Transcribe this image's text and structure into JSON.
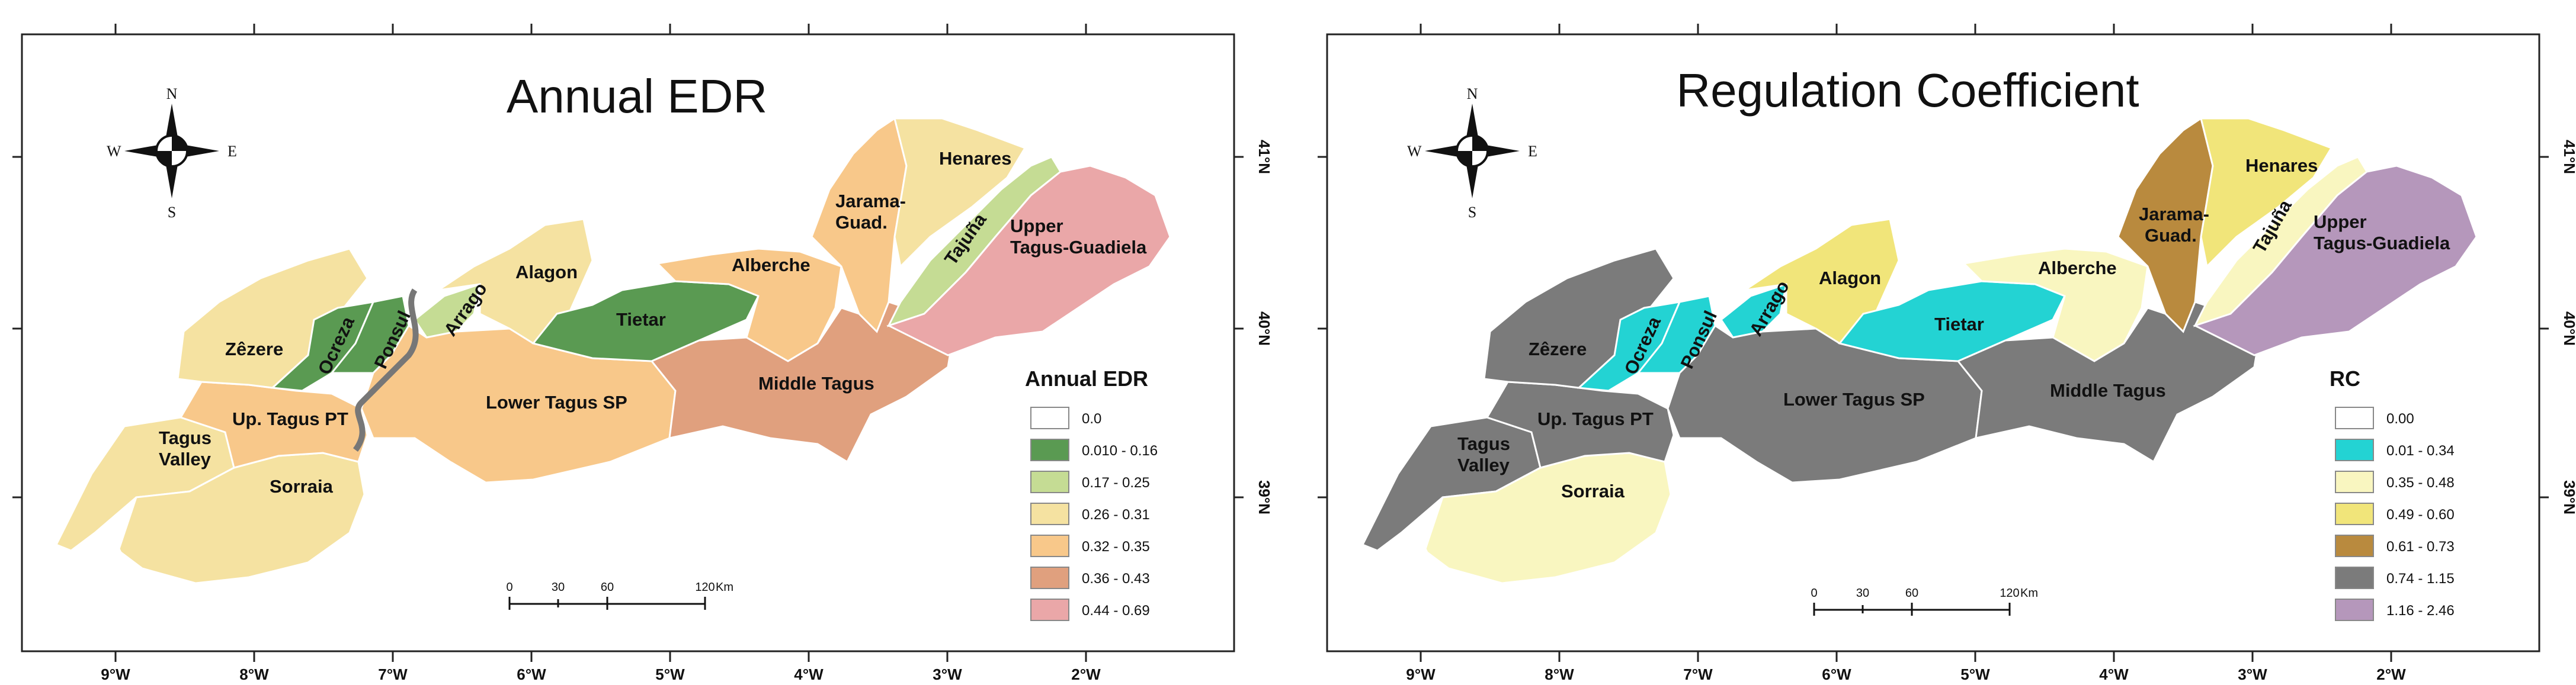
{
  "maps": [
    {
      "title": "Annual EDR",
      "legend_title": "Annual EDR",
      "legend": [
        {
          "label": "0.0",
          "color": "#ffffff"
        },
        {
          "label": "0.010 - 0.16",
          "color": "#5a9a52"
        },
        {
          "label": "0.17 - 0.25",
          "color": "#c5dc94"
        },
        {
          "label": "0.26 - 0.31",
          "color": "#f5e2a1"
        },
        {
          "label": "0.32 - 0.35",
          "color": "#f8c88a"
        },
        {
          "label": "0.36 - 0.43",
          "color": "#e0a07e"
        },
        {
          "label": "0.44 - 0.69",
          "color": "#eaa7a8"
        }
      ],
      "regions": {
        "zezere": {
          "label": "Zêzere",
          "color": "#f5e2a1"
        },
        "ocreza": {
          "label": "Ocreza",
          "color": "#5a9a52"
        },
        "ponsul": {
          "label": "Ponsul",
          "color": "#5a9a52"
        },
        "arrago": {
          "label": "Arrago",
          "color": "#c5dc94"
        },
        "alagon": {
          "label": "Alagon",
          "color": "#f5e2a1"
        },
        "tietar": {
          "label": "Tietar",
          "color": "#5a9a52"
        },
        "alberche": {
          "label": "Alberche",
          "color": "#f8c88a"
        },
        "jarama": {
          "label": "Jarama-\nGuad.",
          "color": "#f8c88a"
        },
        "henares": {
          "label": "Henares",
          "color": "#f5e2a1"
        },
        "tajuna": {
          "label": "Tajuña",
          "color": "#c5dc94"
        },
        "upper": {
          "label": "Upper\nTagus-Guadiela",
          "color": "#eaa7a8"
        },
        "middle": {
          "label": "Middle Tagus",
          "color": "#e0a07e"
        },
        "lower": {
          "label": "Lower Tagus SP",
          "color": "#f8c88a"
        },
        "uptagus": {
          "label": "Up. Tagus PT",
          "color": "#f8c88a"
        },
        "valley": {
          "label": "Tagus\nValley",
          "color": "#f5e2a1"
        },
        "sorraia": {
          "label": "Sorraia",
          "color": "#f5e2a1"
        },
        "estuary": {
          "label": "",
          "color": "#ffffff"
        }
      }
    },
    {
      "title": "Regulation Coefficient",
      "legend_title": "RC",
      "legend": [
        {
          "label": "0.00",
          "color": "#ffffff"
        },
        {
          "label": "0.01 - 0.34",
          "color": "#23d3d3"
        },
        {
          "label": "0.35 - 0.48",
          "color": "#f9f6c0"
        },
        {
          "label": "0.49 - 0.60",
          "color": "#f1e57a"
        },
        {
          "label": "0.61 - 0.73",
          "color": "#b98a3e"
        },
        {
          "label": "0.74 - 1.15",
          "color": "#7b7b7b"
        },
        {
          "label": "1.16 - 2.46",
          "color": "#b597bb"
        }
      ],
      "regions": {
        "zezere": {
          "label": "Zêzere",
          "color": "#7b7b7b"
        },
        "ocreza": {
          "label": "Ocreza",
          "color": "#23d3d3"
        },
        "ponsul": {
          "label": "Ponsul",
          "color": "#23d3d3"
        },
        "arrago": {
          "label": "Arrago",
          "color": "#23d3d3"
        },
        "alagon": {
          "label": "Alagon",
          "color": "#f1e57a"
        },
        "tietar": {
          "label": "Tietar",
          "color": "#23d3d3"
        },
        "alberche": {
          "label": "Alberche",
          "color": "#f9f6c0"
        },
        "jarama": {
          "label": "Jarama-\nGuad.",
          "color": "#b98a3e"
        },
        "henares": {
          "label": "Henares",
          "color": "#f1e57a"
        },
        "tajuna": {
          "label": "Tajuña",
          "color": "#f9f6c0"
        },
        "upper": {
          "label": "Upper\nTagus-Guadiela",
          "color": "#b597bb"
        },
        "middle": {
          "label": "Middle Tagus",
          "color": "#7b7b7b"
        },
        "lower": {
          "label": "Lower Tagus SP",
          "color": "#7b7b7b"
        },
        "uptagus": {
          "label": "Up. Tagus PT",
          "color": "#7b7b7b"
        },
        "valley": {
          "label": "Tagus\nValley",
          "color": "#7b7b7b"
        },
        "sorraia": {
          "label": "Sorraia",
          "color": "#f9f6c0"
        },
        "estuary": {
          "label": "",
          "color": "#ffffff"
        }
      }
    }
  ],
  "axes": {
    "lon_labels": [
      "9°W",
      "8°W",
      "7°W",
      "6°W",
      "5°W",
      "4°W",
      "3°W",
      "2°W"
    ],
    "lat_labels": [
      "41°N",
      "40°N",
      "39°N"
    ]
  },
  "scale_bar": {
    "labels": [
      "0",
      "30",
      "60",
      "120"
    ],
    "unit": "Km"
  },
  "compass": {
    "n": "N",
    "s": "S",
    "e": "E",
    "w": "W"
  }
}
